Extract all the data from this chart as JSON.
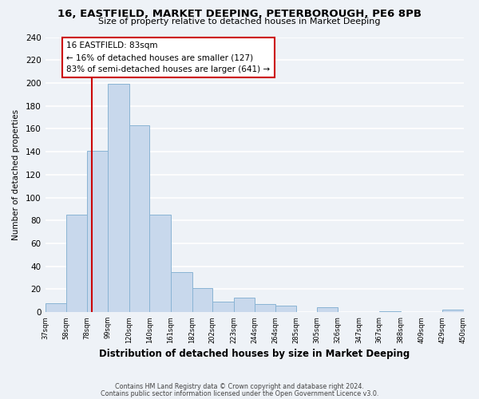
{
  "title1": "16, EASTFIELD, MARKET DEEPING, PETERBOROUGH, PE6 8PB",
  "title2": "Size of property relative to detached houses in Market Deeping",
  "xlabel": "Distribution of detached houses by size in Market Deeping",
  "ylabel": "Number of detached properties",
  "bar_color": "#c8d8ec",
  "bar_edge_color": "#8ab4d4",
  "bin_edges": [
    37,
    58,
    78,
    99,
    120,
    140,
    161,
    182,
    202,
    223,
    244,
    264,
    285,
    305,
    326,
    347,
    367,
    388,
    409,
    429,
    450
  ],
  "bar_heights": [
    8,
    85,
    141,
    199,
    163,
    85,
    35,
    21,
    9,
    13,
    7,
    6,
    0,
    4,
    0,
    0,
    1,
    0,
    0,
    2
  ],
  "tick_labels": [
    "37sqm",
    "58sqm",
    "78sqm",
    "99sqm",
    "120sqm",
    "140sqm",
    "161sqm",
    "182sqm",
    "202sqm",
    "223sqm",
    "244sqm",
    "264sqm",
    "285sqm",
    "305sqm",
    "326sqm",
    "347sqm",
    "367sqm",
    "388sqm",
    "409sqm",
    "429sqm",
    "450sqm"
  ],
  "vline_x": 83,
  "vline_color": "#cc0000",
  "annotation_title": "16 EASTFIELD: 83sqm",
  "annotation_line1": "← 16% of detached houses are smaller (127)",
  "annotation_line2": "83% of semi-detached houses are larger (641) →",
  "annotation_box_color": "#ffffff",
  "annotation_box_edge": "#cc0000",
  "ylim": [
    0,
    240
  ],
  "footer1": "Contains HM Land Registry data © Crown copyright and database right 2024.",
  "footer2": "Contains public sector information licensed under the Open Government Licence v3.0.",
  "background_color": "#eef2f7",
  "grid_color": "#ffffff"
}
